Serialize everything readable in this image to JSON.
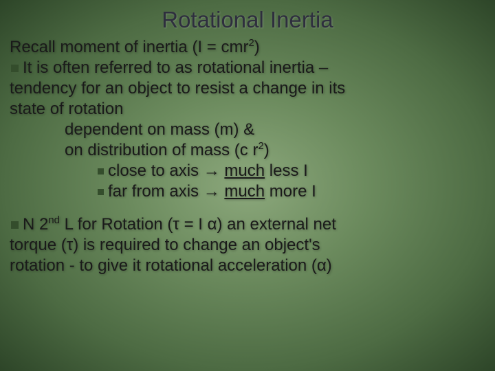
{
  "title": "Rotational Inertia",
  "line1_a": "Recall moment of inertia (I = cmr",
  "line1_b": ")",
  "line2": "It is often referred to as rotational inertia –",
  "line3": "tendency for an object to resist a change in its",
  "line4": "state of rotation",
  "line5": "dependent on mass (m) &",
  "line6_a": "on distribution of mass (c r",
  "line6_b": ")",
  "line7_a": "close to axis ",
  "line7_arrow": "→",
  "line7_b": " ",
  "line7_u": "much",
  "line7_c": " less I",
  "line8_a": "far from axis ",
  "line8_arrow": "→",
  "line8_b": " ",
  "line8_u": "much",
  "line8_c": " more I",
  "line9_a": "N 2",
  "line9_nd": "nd",
  "line9_b": " L for Rotation (τ = I α) an external net",
  "line10": "torque (τ) is required to change an object's",
  "line11": "rotation - to give it rotational acceleration (α)",
  "sup2": "2"
}
